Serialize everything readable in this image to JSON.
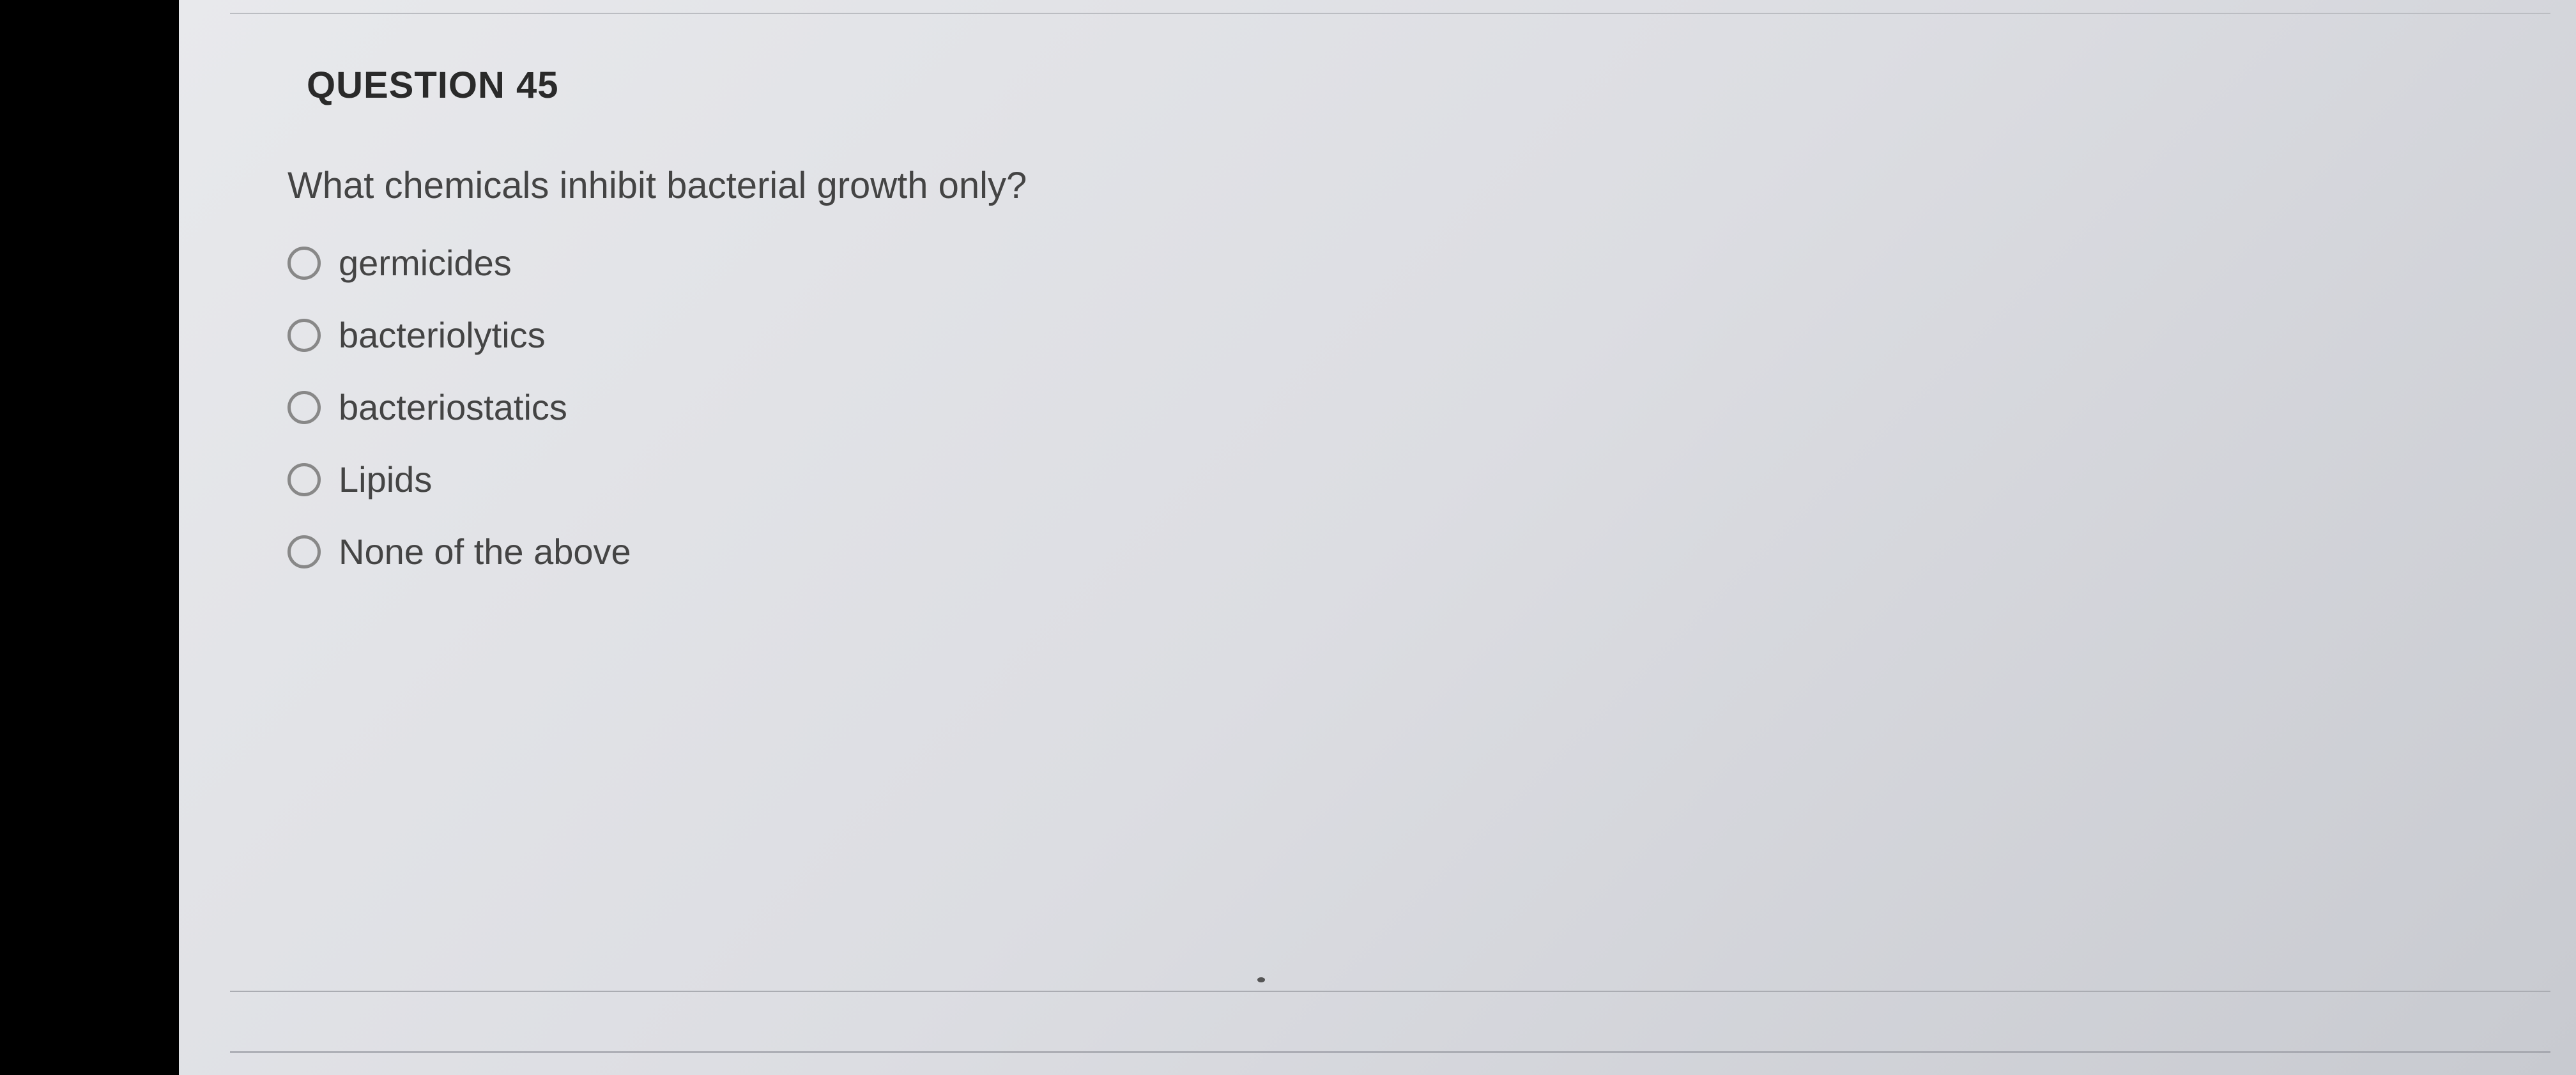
{
  "question": {
    "header": "QUESTION 45",
    "text": "What chemicals inhibit bacterial growth only?",
    "options": [
      {
        "label": "germicides"
      },
      {
        "label": "bacteriolytics"
      },
      {
        "label": "bacteriostatics"
      },
      {
        "label": "Lipids"
      },
      {
        "label": "None of the above"
      }
    ]
  },
  "styling": {
    "background_color": "#e2e3e7",
    "black_bar_color": "#000000",
    "header_color": "#2a2a2a",
    "text_color": "#444444",
    "radio_border_color": "#888888",
    "divider_color": "#bbbdc2",
    "header_fontsize": 58,
    "text_fontsize": 58,
    "option_fontsize": 56,
    "radio_size": 52
  }
}
